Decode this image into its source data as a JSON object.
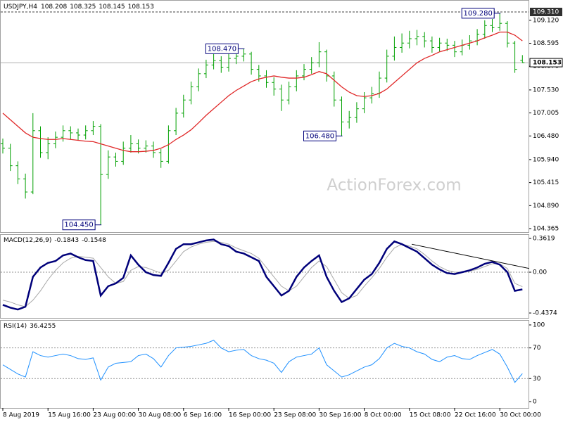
{
  "chart_data": [
    {
      "type": "ohlc",
      "symbol": "USDJPY,H4",
      "color": "#00a000",
      "open": [
        106.3,
        106.2,
        105.8,
        105.5,
        105.2,
        106.6,
        106.1,
        106.3,
        106.45,
        106.6,
        106.55,
        106.5,
        106.6,
        106.7,
        105.6,
        106.0,
        105.9,
        106.2,
        106.3,
        106.2,
        106.25,
        106.1,
        105.9,
        106.6,
        107.0,
        107.3,
        107.6,
        107.9,
        108.1,
        108.2,
        108.05,
        108.25,
        108.3,
        108.35,
        108.0,
        107.85,
        107.7,
        107.55,
        107.3,
        107.6,
        107.85,
        108.0,
        108.15,
        108.4,
        107.85,
        107.3,
        106.8,
        106.9,
        107.1,
        107.35,
        107.45,
        107.8,
        108.3,
        108.5,
        108.6,
        108.7,
        108.75,
        108.65,
        108.5,
        108.6,
        108.55,
        108.4,
        108.55,
        108.65,
        108.8,
        109.0,
        108.95,
        109.05,
        108.6,
        108.208
      ],
      "high": [
        106.42,
        106.3,
        105.9,
        105.62,
        107.0,
        106.7,
        106.45,
        106.58,
        106.72,
        106.7,
        106.65,
        106.72,
        106.82,
        106.75,
        106.15,
        106.1,
        106.35,
        106.5,
        106.4,
        106.38,
        106.35,
        106.18,
        106.72,
        107.12,
        107.42,
        107.72,
        108.02,
        108.22,
        108.35,
        108.3,
        108.38,
        108.42,
        108.47,
        108.4,
        108.1,
        107.98,
        107.82,
        107.65,
        107.72,
        107.98,
        108.12,
        108.28,
        108.62,
        108.45,
        107.95,
        107.38,
        107.05,
        107.25,
        107.48,
        107.6,
        107.95,
        108.45,
        108.75,
        108.82,
        108.88,
        108.9,
        108.85,
        108.75,
        108.72,
        108.7,
        108.65,
        108.68,
        108.78,
        108.92,
        109.12,
        109.15,
        109.28,
        109.1,
        108.65,
        108.325
      ],
      "low": [
        106.08,
        105.68,
        105.38,
        105.05,
        105.15,
        105.98,
        105.95,
        106.2,
        106.35,
        106.4,
        106.38,
        106.4,
        106.5,
        104.45,
        105.5,
        105.78,
        105.82,
        106.1,
        106.08,
        106.1,
        105.98,
        105.75,
        105.85,
        106.5,
        106.9,
        107.2,
        107.5,
        107.8,
        108.0,
        107.92,
        107.95,
        108.12,
        108.18,
        107.88,
        107.72,
        107.58,
        107.4,
        107.05,
        107.2,
        107.5,
        107.75,
        107.9,
        108.05,
        107.72,
        107.15,
        106.48,
        106.65,
        106.78,
        107.0,
        107.22,
        107.35,
        107.7,
        108.2,
        108.38,
        108.48,
        108.55,
        108.5,
        108.38,
        108.4,
        108.42,
        108.28,
        108.32,
        108.45,
        108.55,
        108.7,
        108.85,
        108.88,
        108.5,
        107.92,
        108.145
      ],
      "close": [
        106.2,
        105.8,
        105.5,
        105.2,
        106.6,
        106.1,
        106.3,
        106.45,
        106.6,
        106.55,
        106.5,
        106.6,
        106.7,
        105.6,
        106.0,
        105.9,
        106.2,
        106.3,
        106.2,
        106.25,
        106.1,
        105.9,
        106.6,
        107.0,
        107.3,
        107.6,
        107.9,
        108.1,
        108.2,
        108.05,
        108.25,
        108.3,
        108.35,
        108.0,
        107.85,
        107.7,
        107.55,
        107.3,
        107.6,
        107.85,
        108.0,
        108.15,
        108.4,
        107.85,
        107.3,
        106.8,
        106.9,
        107.1,
        107.35,
        107.45,
        107.8,
        108.3,
        108.5,
        108.6,
        108.7,
        108.75,
        108.65,
        108.5,
        108.6,
        108.55,
        108.4,
        108.55,
        108.65,
        108.8,
        109.0,
        108.95,
        109.05,
        108.6,
        108.0,
        108.153
      ],
      "ma": {
        "color": "#e02828",
        "values": [
          107.0,
          106.85,
          106.7,
          106.55,
          106.45,
          106.42,
          106.4,
          106.4,
          106.42,
          106.4,
          106.38,
          106.36,
          106.35,
          106.3,
          106.25,
          106.2,
          106.15,
          106.12,
          106.12,
          106.13,
          106.15,
          106.2,
          106.28,
          106.4,
          106.5,
          106.62,
          106.78,
          106.95,
          107.1,
          107.25,
          107.4,
          107.52,
          107.62,
          107.72,
          107.78,
          107.82,
          107.85,
          107.82,
          107.8,
          107.8,
          107.82,
          107.88,
          107.95,
          107.9,
          107.75,
          107.6,
          107.48,
          107.4,
          107.38,
          107.4,
          107.45,
          107.55,
          107.7,
          107.85,
          108.0,
          108.15,
          108.25,
          108.32,
          108.4,
          108.45,
          108.5,
          108.55,
          108.6,
          108.65,
          108.72,
          108.78,
          108.85,
          108.85,
          108.78,
          108.65
        ]
      },
      "ylim": [
        104.285,
        109.583
      ],
      "yticks": [
        {
          "value": 109.12,
          "label": "109.120"
        },
        108.595,
        {
          "value": 108.07,
          "label": "108.070"
        },
        {
          "value": 107.53,
          "label": "107.530"
        },
        107.005,
        {
          "value": 106.48,
          "label": "106.480"
        },
        {
          "value": 105.94,
          "label": "105.940"
        },
        105.415,
        {
          "value": 104.89,
          "label": "104.890"
        },
        104.365
      ],
      "hline": {
        "value": 109.31,
        "label": "109.310"
      },
      "annotations": [
        {
          "text": "104.450",
          "value": 104.45,
          "x": 13
        },
        {
          "text": "108.470",
          "value": 108.47,
          "x": 32
        },
        {
          "text": "106.480",
          "value": 106.48,
          "x": 45
        },
        {
          "text": "109.280",
          "value": 109.28,
          "x": 66
        }
      ],
      "watermark": "ActionForex.com"
    },
    {
      "type": "macd",
      "title": "MACD(12,26,9)",
      "series": [
        {
          "color": "#00007a",
          "values": [
            -0.35,
            -0.38,
            -0.4,
            -0.37,
            -0.05,
            0.05,
            0.1,
            0.12,
            0.18,
            0.2,
            0.16,
            0.13,
            0.12,
            -0.25,
            -0.15,
            -0.12,
            -0.06,
            0.18,
            0.08,
            0.0,
            -0.03,
            -0.04,
            0.1,
            0.25,
            0.3,
            0.3,
            0.32,
            0.34,
            0.35,
            0.3,
            0.28,
            0.22,
            0.2,
            0.16,
            0.12,
            -0.05,
            -0.15,
            -0.25,
            -0.2,
            -0.05,
            0.05,
            0.12,
            0.18,
            -0.05,
            -0.2,
            -0.32,
            -0.28,
            -0.18,
            -0.08,
            -0.02,
            0.1,
            0.25,
            0.33,
            0.3,
            0.26,
            0.22,
            0.15,
            0.08,
            0.03,
            -0.01,
            -0.02,
            0.0,
            0.02,
            0.05,
            0.09,
            0.11,
            0.08,
            0.0,
            -0.2,
            -0.1843
          ]
        },
        {
          "color": "#a8a8a8",
          "values": [
            -0.3,
            -0.32,
            -0.35,
            -0.37,
            -0.3,
            -0.2,
            -0.08,
            0.02,
            0.1,
            0.15,
            0.17,
            0.16,
            0.15,
            0.05,
            -0.05,
            -0.12,
            -0.1,
            0.02,
            0.06,
            0.05,
            0.02,
            -0.01,
            0.02,
            0.12,
            0.22,
            0.27,
            0.3,
            0.32,
            0.33,
            0.32,
            0.3,
            0.26,
            0.23,
            0.2,
            0.15,
            0.05,
            -0.05,
            -0.15,
            -0.2,
            -0.15,
            -0.05,
            0.05,
            0.12,
            0.06,
            -0.08,
            -0.22,
            -0.28,
            -0.25,
            -0.15,
            -0.06,
            0.04,
            0.16,
            0.26,
            0.3,
            0.28,
            0.25,
            0.19,
            0.12,
            0.06,
            0.02,
            0.0,
            0.0,
            0.01,
            0.03,
            0.06,
            0.09,
            0.09,
            0.04,
            -0.12,
            -0.1548
          ]
        }
      ],
      "ylim": [
        -0.49,
        0.407
      ],
      "yticks": [
        0.3619,
        {
          "value": 0,
          "label": "0.00"
        },
        -0.4374
      ],
      "trendline": {
        "x": [
          54.3,
          69.9
        ],
        "y": [
          0.3,
          0.04
        ]
      }
    },
    {
      "type": "line",
      "title": "RSI(14)",
      "color": "#1e90ff",
      "values": [
        48,
        42,
        36,
        32,
        65,
        60,
        58,
        60,
        62,
        60,
        56,
        55,
        57,
        28,
        45,
        50,
        51,
        52,
        60,
        62,
        56,
        45,
        60,
        70,
        71,
        72,
        74,
        76,
        80,
        70,
        65,
        67,
        68,
        60,
        56,
        54,
        50,
        38,
        52,
        58,
        60,
        62,
        70,
        48,
        40,
        32,
        35,
        40,
        45,
        48,
        56,
        70,
        76,
        72,
        70,
        65,
        62,
        55,
        52,
        58,
        60,
        56,
        55,
        60,
        64,
        68,
        62,
        45,
        25,
        36.4255
      ],
      "ylim": [
        -8.3,
        106.4
      ],
      "yticks": [
        100,
        70,
        30,
        0
      ],
      "xticks": [
        {
          "value": 0,
          "label": "8 Aug 2019"
        },
        {
          "value": 6,
          "label": "15 Aug 16:00"
        },
        {
          "value": 12,
          "label": "23 Aug 00:00"
        },
        {
          "value": 18,
          "label": "30 Aug 08:00"
        },
        {
          "value": 24,
          "label": "6 Sep 16:00"
        },
        {
          "value": 30,
          "label": "16 Sep 00:00"
        },
        {
          "value": 36,
          "label": "23 Sep 08:00"
        },
        {
          "value": 42,
          "label": "30 Sep 16:00"
        },
        {
          "value": 48,
          "label": "8 Oct 00:00"
        },
        {
          "value": 54,
          "label": "15 Oct 08:00"
        },
        {
          "value": 60,
          "label": "22 Oct 16:00"
        },
        {
          "value": 66,
          "label": "30 Oct 00:00"
        }
      ]
    }
  ]
}
